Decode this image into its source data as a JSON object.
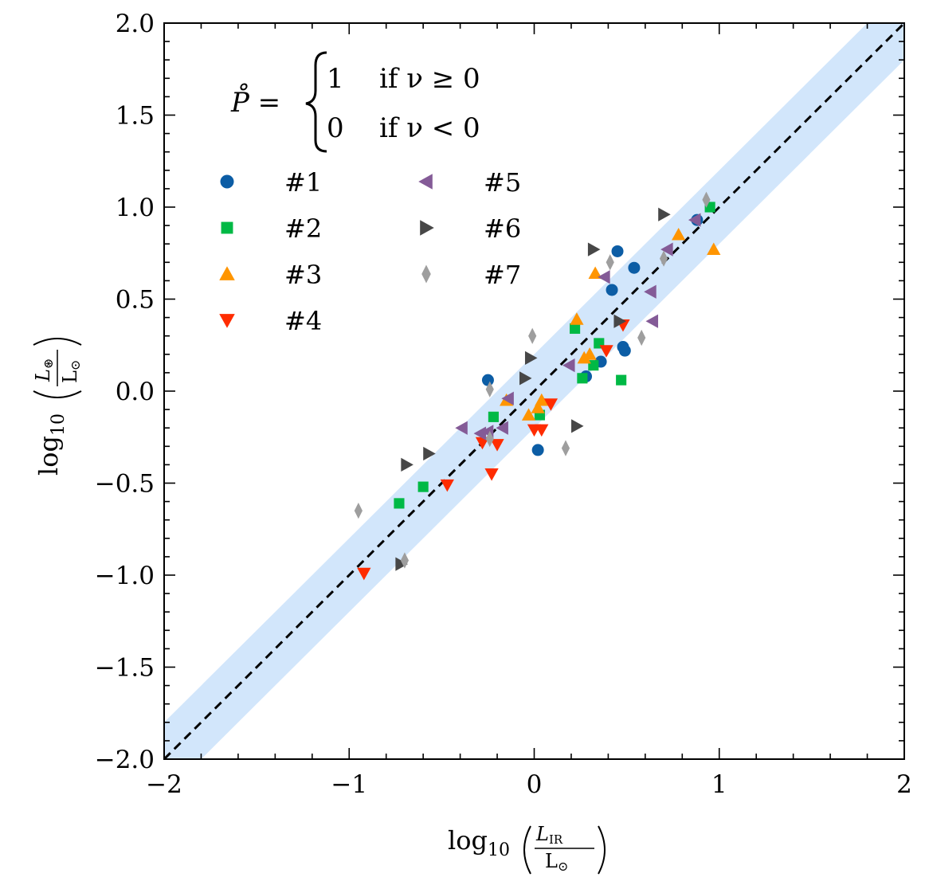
{
  "chart_data": {
    "type": "scatter",
    "title": "",
    "xlabel": "log10(L_IR / L_sun)",
    "ylabel": "log10(L_* / L_sun)",
    "xlabel_parts": {
      "prefix": "log",
      "sub": "10",
      "num": "L",
      "num_sub": "IR",
      "den": "L",
      "den_sub": "⊙"
    },
    "ylabel_parts": {
      "prefix": "log",
      "sub": "10",
      "num": "L",
      "num_sub": "⊛",
      "den": "L",
      "den_sub": "⊙"
    },
    "xlim": [
      -2,
      2
    ],
    "ylim": [
      -2,
      2
    ],
    "x_ticks": [
      -2,
      -1,
      0,
      1,
      2
    ],
    "x_tick_labels": [
      "−2",
      "−1",
      "0",
      "1",
      "2"
    ],
    "y_ticks": [
      -2.0,
      -1.5,
      -1.0,
      -0.5,
      0.0,
      0.5,
      1.0,
      1.5,
      2.0
    ],
    "y_tick_labels": [
      "−2.0",
      "−1.5",
      "−1.0",
      "−0.5",
      "0.0",
      "0.5",
      "1.0",
      "1.5",
      "2.0"
    ],
    "grid": false,
    "legend_position": "upper-left",
    "one_to_one_line": {
      "style": "dashed",
      "color": "#000000",
      "from": [
        -2,
        -2
      ],
      "to": [
        2,
        2
      ]
    },
    "band": {
      "half_width": 0.2,
      "color": "#d2e6fb"
    },
    "annotation": {
      "lhs": "P̊ =",
      "case1_value": "1",
      "case1_condition": "if ν ≥ 0",
      "case2_value": "0",
      "case2_condition": "if ν < 0"
    },
    "series": [
      {
        "name": "#1",
        "marker": "circle",
        "color": "#0c5da5",
        "points": [
          [
            -0.25,
            0.06
          ],
          [
            0.02,
            -0.32
          ],
          [
            0.28,
            0.08
          ],
          [
            0.36,
            0.16
          ],
          [
            0.42,
            0.55
          ],
          [
            0.45,
            0.76
          ],
          [
            0.48,
            0.24
          ],
          [
            0.49,
            0.22
          ],
          [
            0.54,
            0.67
          ],
          [
            0.88,
            0.93
          ]
        ]
      },
      {
        "name": "#2",
        "marker": "square",
        "color": "#00b945",
        "points": [
          [
            -0.73,
            -0.61
          ],
          [
            -0.6,
            -0.52
          ],
          [
            -0.22,
            -0.14
          ],
          [
            0.03,
            -0.13
          ],
          [
            0.22,
            0.34
          ],
          [
            0.26,
            0.07
          ],
          [
            0.32,
            0.14
          ],
          [
            0.35,
            0.26
          ],
          [
            0.47,
            0.06
          ],
          [
            0.95,
            1.0
          ]
        ]
      },
      {
        "name": "#3",
        "marker": "triangle-up",
        "color": "#ff9500",
        "points": [
          [
            -0.15,
            -0.05
          ],
          [
            -0.03,
            -0.13
          ],
          [
            0.02,
            -0.09
          ],
          [
            0.04,
            -0.05
          ],
          [
            0.23,
            0.39
          ],
          [
            0.27,
            0.18
          ],
          [
            0.3,
            0.2
          ],
          [
            0.33,
            0.64
          ],
          [
            0.78,
            0.85
          ],
          [
            0.97,
            0.77
          ]
        ]
      },
      {
        "name": "#4",
        "marker": "triangle-down",
        "color": "#ff2c00",
        "points": [
          [
            -0.92,
            -0.99
          ],
          [
            -0.47,
            -0.51
          ],
          [
            -0.28,
            -0.28
          ],
          [
            -0.23,
            -0.45
          ],
          [
            -0.2,
            -0.29
          ],
          [
            0.0,
            -0.21
          ],
          [
            0.04,
            -0.21
          ],
          [
            0.09,
            -0.07
          ],
          [
            0.39,
            0.22
          ],
          [
            0.48,
            0.36
          ]
        ]
      },
      {
        "name": "#5",
        "marker": "triangle-left",
        "color": "#845b97",
        "points": [
          [
            -0.39,
            -0.2
          ],
          [
            -0.29,
            -0.23
          ],
          [
            -0.25,
            -0.22
          ],
          [
            -0.17,
            -0.2
          ],
          [
            -0.14,
            -0.04
          ],
          [
            0.19,
            0.14
          ],
          [
            0.38,
            0.62
          ],
          [
            0.63,
            0.54
          ],
          [
            0.64,
            0.38
          ],
          [
            0.72,
            0.77
          ],
          [
            0.87,
            0.93
          ]
        ]
      },
      {
        "name": "#6",
        "marker": "triangle-right",
        "color": "#474747",
        "points": [
          [
            -0.72,
            -0.94
          ],
          [
            -0.69,
            -0.4
          ],
          [
            -0.57,
            -0.34
          ],
          [
            -0.05,
            0.07
          ],
          [
            -0.02,
            0.18
          ],
          [
            0.23,
            -0.19
          ],
          [
            0.32,
            0.77
          ],
          [
            0.46,
            0.38
          ],
          [
            0.7,
            0.96
          ]
        ]
      },
      {
        "name": "#7",
        "marker": "diamond",
        "color": "#9e9e9e",
        "points": [
          [
            -0.95,
            -0.65
          ],
          [
            -0.7,
            -0.92
          ],
          [
            -0.24,
            -0.26
          ],
          [
            -0.24,
            0.01
          ],
          [
            -0.01,
            0.3
          ],
          [
            0.17,
            -0.31
          ],
          [
            0.41,
            0.7
          ],
          [
            0.58,
            0.29
          ],
          [
            0.7,
            0.72
          ],
          [
            0.93,
            1.04
          ]
        ]
      }
    ]
  }
}
